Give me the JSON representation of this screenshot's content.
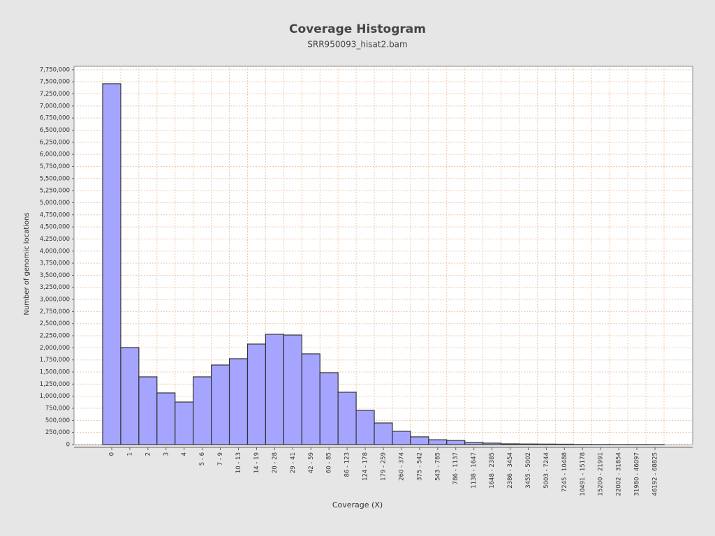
{
  "chart_data": {
    "type": "bar",
    "title": "Coverage Histogram",
    "subtitle": "SRR950093_hisat2.bam",
    "x_label": "Coverage (X)",
    "y_label": "Number of genomic locations",
    "categories": [
      "0",
      "1",
      "2",
      "3",
      "4",
      "5 - 6",
      "7 - 9",
      "10 - 13",
      "14 - 19",
      "20 - 28",
      "29 - 41",
      "42 - 59",
      "60 - 85",
      "86 - 123",
      "124 - 178",
      "179 - 259",
      "260 - 374",
      "375 - 542",
      "543 - 785",
      "786 - 1137",
      "1138 - 1647",
      "1648 - 2385",
      "2386 - 3454",
      "3455 - 5002",
      "5003 - 7244",
      "7245 - 10488",
      "10491 - 15178",
      "15200 - 21991",
      "22002 - 31854",
      "31980 - 46097",
      "46192 - 68825"
    ],
    "values": [
      7460000,
      2006000,
      1400000,
      1068000,
      880000,
      1400000,
      1645000,
      1775000,
      2078000,
      2280000,
      2265000,
      1876000,
      1486000,
      1082000,
      707000,
      447000,
      274000,
      160000,
      100000,
      85000,
      45000,
      30000,
      15000,
      12000,
      10000,
      8000,
      3000,
      2000,
      1000,
      1000,
      500
    ],
    "color": "#a5a5ff",
    "ylim": [
      0,
      7820000
    ],
    "yticks": [
      0,
      {
        "value": 250000,
        "label": "250,000"
      },
      {
        "value": 500000,
        "label": "500,000"
      },
      {
        "value": 750000,
        "label": "750,000"
      },
      {
        "value": 1000000,
        "label": "1,000,000"
      },
      {
        "value": 1250000,
        "label": "1,250,000"
      },
      {
        "value": 1500000,
        "label": "1,500,000"
      },
      {
        "value": 1750000,
        "label": "1,750,000"
      },
      {
        "value": 2000000,
        "label": "2,000,000"
      },
      {
        "value": 2250000,
        "label": "2,250,000"
      },
      {
        "value": 2500000,
        "label": "2,500,000"
      },
      {
        "value": 2750000,
        "label": "2,750,000"
      },
      {
        "value": 3000000,
        "label": "3,000,000"
      },
      {
        "value": 3250000,
        "label": "3,250,000"
      },
      {
        "value": 3500000,
        "label": "3,500,000"
      },
      {
        "value": 3750000,
        "label": "3,750,000"
      },
      {
        "value": 4000000,
        "label": "4,000,000"
      },
      {
        "value": 4250000,
        "label": "4,250,000"
      },
      {
        "value": 4500000,
        "label": "4,500,000"
      },
      {
        "value": 4750000,
        "label": "4,750,000"
      },
      {
        "value": 5000000,
        "label": "5,000,000"
      },
      {
        "value": 5250000,
        "label": "5,250,000"
      },
      {
        "value": 5500000,
        "label": "5,500,000"
      },
      {
        "value": 5750000,
        "label": "5,750,000"
      },
      {
        "value": 6000000,
        "label": "6,000,000"
      },
      {
        "value": 6250000,
        "label": "6,250,000"
      },
      {
        "value": 6500000,
        "label": "6,500,000"
      },
      {
        "value": 6750000,
        "label": "6,750,000"
      },
      {
        "value": 7000000,
        "label": "7,000,000"
      },
      {
        "value": 7250000,
        "label": "7,250,000"
      },
      {
        "value": 7500000,
        "label": "7,500,000"
      },
      {
        "value": 7750000,
        "label": "7,750,000"
      }
    ],
    "grid": true
  }
}
